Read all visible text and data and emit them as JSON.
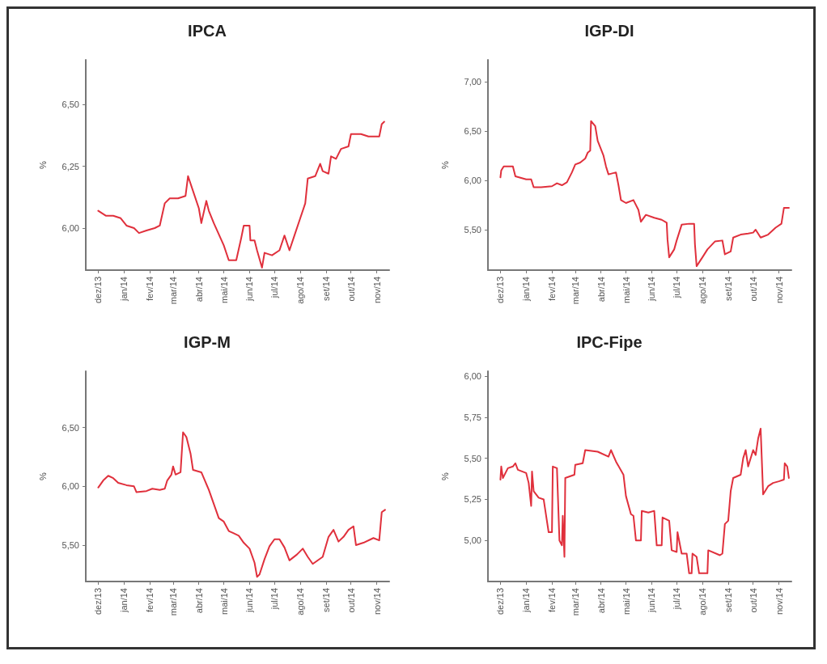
{
  "chart_data": [
    {
      "type": "line",
      "title": "IPCA",
      "ylabel": "%",
      "color": "#e0303c",
      "marker": "none",
      "grid": false,
      "x": [
        "2013-12-01",
        "2013-12-10",
        "2013-12-19",
        "2013-12-28",
        "2014-01-04",
        "2014-01-13",
        "2014-01-19",
        "2014-01-28",
        "2014-02-07",
        "2014-02-13",
        "2014-02-19",
        "2014-02-25",
        "2014-03-07",
        "2014-03-16",
        "2014-03-19",
        "2014-03-25",
        "2014-04-01",
        "2014-04-04",
        "2014-04-10",
        "2014-04-13",
        "2014-04-19",
        "2014-05-01",
        "2014-05-07",
        "2014-05-16",
        "2014-05-22",
        "2014-05-25",
        "2014-06-01",
        "2014-06-02",
        "2014-06-07",
        "2014-06-10",
        "2014-06-16",
        "2014-06-19",
        "2014-06-28",
        "2014-07-07",
        "2014-07-13",
        "2014-07-19",
        "2014-07-25",
        "2014-08-01",
        "2014-08-07",
        "2014-08-10",
        "2014-08-19",
        "2014-08-25",
        "2014-08-28",
        "2014-09-04",
        "2014-09-07",
        "2014-09-13",
        "2014-09-19",
        "2014-09-28",
        "2014-10-01",
        "2014-10-13",
        "2014-10-22",
        "2014-11-01",
        "2014-11-04",
        "2014-11-07",
        "2014-11-10"
      ],
      "values": [
        6.07,
        6.05,
        6.05,
        6.04,
        6.01,
        6.0,
        5.98,
        5.99,
        6.0,
        6.01,
        6.1,
        6.12,
        6.12,
        6.13,
        6.21,
        6.15,
        6.08,
        6.02,
        6.11,
        6.07,
        6.02,
        5.93,
        5.87,
        5.87,
        5.96,
        6.01,
        6.01,
        5.95,
        5.95,
        5.91,
        5.84,
        5.9,
        5.89,
        5.91,
        5.97,
        5.91,
        5.97,
        6.04,
        6.1,
        6.2,
        6.21,
        6.26,
        6.23,
        6.22,
        6.29,
        6.28,
        6.32,
        6.33,
        6.38,
        6.38,
        6.37,
        6.37,
        6.37,
        6.42,
        6.43
      ],
      "xlim": [
        "2013-11-16",
        "2014-11-16"
      ],
      "ylim": [
        5.83,
        6.68
      ],
      "yticks": [
        {
          "value": 6.0,
          "label": "6,00"
        },
        {
          "value": 6.25,
          "label": "6,25"
        },
        {
          "value": 6.5,
          "label": "6,50"
        }
      ],
      "xticks": [
        {
          "value": "2013-12-01",
          "label": "dez/13"
        },
        {
          "value": "2014-01-01",
          "label": "jan/14"
        },
        {
          "value": "2014-02-01",
          "label": "fev/14"
        },
        {
          "value": "2014-03-01",
          "label": "mar/14"
        },
        {
          "value": "2014-04-01",
          "label": "abr/14"
        },
        {
          "value": "2014-05-01",
          "label": "mai/14"
        },
        {
          "value": "2014-06-01",
          "label": "jun/14"
        },
        {
          "value": "2014-07-01",
          "label": "jul/14"
        },
        {
          "value": "2014-08-01",
          "label": "ago/14"
        },
        {
          "value": "2014-09-01",
          "label": "set/14"
        },
        {
          "value": "2014-10-01",
          "label": "out/14"
        },
        {
          "value": "2014-11-01",
          "label": "nov/14"
        }
      ]
    },
    {
      "type": "line",
      "title": "IGP-DI",
      "ylabel": "%",
      "color": "#e0303c",
      "marker": "none",
      "grid": false,
      "x": [
        "2013-12-01",
        "2013-12-02",
        "2013-12-05",
        "2013-12-16",
        "2013-12-19",
        "2014-01-01",
        "2014-01-07",
        "2014-01-10",
        "2014-01-19",
        "2014-02-01",
        "2014-02-07",
        "2014-02-13",
        "2014-02-19",
        "2014-02-25",
        "2014-03-01",
        "2014-03-07",
        "2014-03-13",
        "2014-03-16",
        "2014-03-19",
        "2014-03-20",
        "2014-03-25",
        "2014-03-28",
        "2014-04-04",
        "2014-04-07",
        "2014-04-10",
        "2014-04-19",
        "2014-04-22",
        "2014-04-25",
        "2014-05-01",
        "2014-05-10",
        "2014-05-16",
        "2014-05-19",
        "2014-05-25",
        "2014-06-04",
        "2014-06-13",
        "2014-06-19",
        "2014-06-20",
        "2014-06-22",
        "2014-06-28",
        "2014-07-01",
        "2014-07-07",
        "2014-07-16",
        "2014-07-22",
        "2014-07-23",
        "2014-07-25",
        "2014-08-01",
        "2014-08-07",
        "2014-08-16",
        "2014-08-25",
        "2014-08-28",
        "2014-09-04",
        "2014-09-07",
        "2014-09-16",
        "2014-09-25",
        "2014-10-01",
        "2014-10-04",
        "2014-10-10",
        "2014-10-19",
        "2014-10-28",
        "2014-11-04",
        "2014-11-07",
        "2014-11-13"
      ],
      "values": [
        6.03,
        6.1,
        6.14,
        6.14,
        6.04,
        6.01,
        6.01,
        5.93,
        5.93,
        5.94,
        5.97,
        5.95,
        5.98,
        6.08,
        6.16,
        6.18,
        6.22,
        6.28,
        6.3,
        6.6,
        6.55,
        6.4,
        6.25,
        6.14,
        6.06,
        6.08,
        5.95,
        5.8,
        5.77,
        5.8,
        5.7,
        5.58,
        5.65,
        5.62,
        5.6,
        5.57,
        5.4,
        5.22,
        5.3,
        5.39,
        5.55,
        5.56,
        5.56,
        5.35,
        5.13,
        5.22,
        5.3,
        5.38,
        5.39,
        5.25,
        5.28,
        5.42,
        5.45,
        5.46,
        5.47,
        5.5,
        5.42,
        5.45,
        5.52,
        5.56,
        5.72,
        5.72
      ],
      "xlim": [
        "2013-11-16",
        "2014-11-16"
      ],
      "ylim": [
        5.09,
        7.22
      ],
      "yticks": [
        {
          "value": 5.5,
          "label": "5,50"
        },
        {
          "value": 6.0,
          "label": "6,00"
        },
        {
          "value": 6.5,
          "label": "6,50"
        },
        {
          "value": 7.0,
          "label": "7,00"
        }
      ],
      "xticks": [
        {
          "value": "2013-12-01",
          "label": "dez/13"
        },
        {
          "value": "2014-01-01",
          "label": "jan/14"
        },
        {
          "value": "2014-02-01",
          "label": "fev/14"
        },
        {
          "value": "2014-03-01",
          "label": "mar/14"
        },
        {
          "value": "2014-04-01",
          "label": "abr/14"
        },
        {
          "value": "2014-05-01",
          "label": "mai/14"
        },
        {
          "value": "2014-06-01",
          "label": "jun/14"
        },
        {
          "value": "2014-07-01",
          "label": "jul/14"
        },
        {
          "value": "2014-08-01",
          "label": "ago/14"
        },
        {
          "value": "2014-09-01",
          "label": "set/14"
        },
        {
          "value": "2014-10-01",
          "label": "out/14"
        },
        {
          "value": "2014-11-01",
          "label": "nov/14"
        }
      ]
    },
    {
      "type": "line",
      "title": "IGP-M",
      "ylabel": "%",
      "color": "#e0303c",
      "marker": "none",
      "grid": false,
      "x": [
        "2013-12-01",
        "2013-12-07",
        "2013-12-13",
        "2013-12-19",
        "2013-12-25",
        "2014-01-04",
        "2014-01-13",
        "2014-01-16",
        "2014-01-28",
        "2014-02-04",
        "2014-02-13",
        "2014-02-19",
        "2014-02-22",
        "2014-02-27",
        "2014-03-01",
        "2014-03-04",
        "2014-03-10",
        "2014-03-13",
        "2014-03-17",
        "2014-03-22",
        "2014-03-25",
        "2014-04-04",
        "2014-04-07",
        "2014-04-13",
        "2014-04-19",
        "2014-04-25",
        "2014-05-01",
        "2014-05-07",
        "2014-05-13",
        "2014-05-19",
        "2014-05-25",
        "2014-06-01",
        "2014-06-07",
        "2014-06-10",
        "2014-06-13",
        "2014-06-19",
        "2014-06-25",
        "2014-07-01",
        "2014-07-07",
        "2014-07-13",
        "2014-07-19",
        "2014-07-28",
        "2014-08-04",
        "2014-08-10",
        "2014-08-16",
        "2014-08-28",
        "2014-09-04",
        "2014-09-10",
        "2014-09-16",
        "2014-09-22",
        "2014-09-28",
        "2014-10-04",
        "2014-10-07",
        "2014-10-16",
        "2014-10-28",
        "2014-11-04",
        "2014-11-07",
        "2014-11-11"
      ],
      "values": [
        5.99,
        6.05,
        6.09,
        6.07,
        6.03,
        6.01,
        6.0,
        5.95,
        5.96,
        5.98,
        5.97,
        5.98,
        6.05,
        6.1,
        6.17,
        6.1,
        6.12,
        6.46,
        6.42,
        6.28,
        6.14,
        6.12,
        6.07,
        5.97,
        5.85,
        5.73,
        5.7,
        5.62,
        5.6,
        5.58,
        5.52,
        5.47,
        5.35,
        5.23,
        5.25,
        5.38,
        5.49,
        5.55,
        5.55,
        5.48,
        5.37,
        5.42,
        5.47,
        5.4,
        5.34,
        5.4,
        5.57,
        5.63,
        5.53,
        5.57,
        5.63,
        5.66,
        5.5,
        5.52,
        5.56,
        5.54,
        5.78,
        5.8
      ],
      "xlim": [
        "2013-11-16",
        "2014-11-16"
      ],
      "ylim": [
        5.19,
        6.98
      ],
      "yticks": [
        {
          "value": 5.5,
          "label": "5,50"
        },
        {
          "value": 6.0,
          "label": "6,00"
        },
        {
          "value": 6.5,
          "label": "6,50"
        }
      ],
      "xticks": [
        {
          "value": "2013-12-01",
          "label": "dez/13"
        },
        {
          "value": "2014-01-01",
          "label": "jan/14"
        },
        {
          "value": "2014-02-01",
          "label": "fev/14"
        },
        {
          "value": "2014-03-01",
          "label": "mar/14"
        },
        {
          "value": "2014-04-01",
          "label": "abr/14"
        },
        {
          "value": "2014-05-01",
          "label": "mai/14"
        },
        {
          "value": "2014-06-01",
          "label": "jun/14"
        },
        {
          "value": "2014-07-01",
          "label": "jul/14"
        },
        {
          "value": "2014-08-01",
          "label": "ago/14"
        },
        {
          "value": "2014-09-01",
          "label": "set/14"
        },
        {
          "value": "2014-10-01",
          "label": "out/14"
        },
        {
          "value": "2014-11-01",
          "label": "nov/14"
        }
      ]
    },
    {
      "type": "line",
      "title": "IPC-Fipe",
      "ylabel": "%",
      "color": "#e0303c",
      "marker": "none",
      "grid": false,
      "x": [
        "2013-12-01",
        "2013-12-02",
        "2013-12-04",
        "2013-12-10",
        "2013-12-16",
        "2013-12-19",
        "2013-12-22",
        "2014-01-01",
        "2014-01-04",
        "2014-01-07",
        "2014-01-08",
        "2014-01-10",
        "2014-01-16",
        "2014-01-22",
        "2014-01-28",
        "2014-02-01",
        "2014-02-02",
        "2014-02-07",
        "2014-02-10",
        "2014-02-13",
        "2014-02-14",
        "2014-02-16",
        "2014-02-17",
        "2014-02-28",
        "2014-03-01",
        "2014-03-10",
        "2014-03-13",
        "2014-03-28",
        "2014-04-10",
        "2014-04-13",
        "2014-04-19",
        "2014-04-28",
        "2014-05-01",
        "2014-05-07",
        "2014-05-10",
        "2014-05-13",
        "2014-05-19",
        "2014-05-20",
        "2014-05-28",
        "2014-06-04",
        "2014-06-07",
        "2014-06-13",
        "2014-06-14",
        "2014-06-22",
        "2014-06-25",
        "2014-07-01",
        "2014-07-02",
        "2014-07-07",
        "2014-07-13",
        "2014-07-16",
        "2014-07-19",
        "2014-07-20",
        "2014-07-25",
        "2014-07-28",
        "2014-08-07",
        "2014-08-08",
        "2014-08-22",
        "2014-08-25",
        "2014-08-28",
        "2014-09-01",
        "2014-09-04",
        "2014-09-07",
        "2014-09-16",
        "2014-09-19",
        "2014-09-22",
        "2014-09-25",
        "2014-10-01",
        "2014-10-04",
        "2014-10-07",
        "2014-10-10",
        "2014-10-13",
        "2014-10-19",
        "2014-10-25",
        "2014-11-01",
        "2014-11-07",
        "2014-11-08",
        "2014-11-11",
        "2014-11-13"
      ],
      "values": [
        5.37,
        5.45,
        5.38,
        5.44,
        5.45,
        5.47,
        5.43,
        5.41,
        5.35,
        5.21,
        5.42,
        5.3,
        5.26,
        5.25,
        5.05,
        5.05,
        5.45,
        5.44,
        5.0,
        4.97,
        5.15,
        4.9,
        5.38,
        5.4,
        5.46,
        5.47,
        5.55,
        5.54,
        5.51,
        5.55,
        5.48,
        5.4,
        5.27,
        5.16,
        5.15,
        5.0,
        5.0,
        5.18,
        5.17,
        5.18,
        4.97,
        4.97,
        5.14,
        5.12,
        4.94,
        4.93,
        5.05,
        4.92,
        4.92,
        4.8,
        4.8,
        4.92,
        4.9,
        4.8,
        4.8,
        4.94,
        4.91,
        4.92,
        5.1,
        5.12,
        5.3,
        5.38,
        5.4,
        5.5,
        5.55,
        5.45,
        5.55,
        5.52,
        5.62,
        5.68,
        5.28,
        5.33,
        5.35,
        5.36,
        5.37,
        5.47,
        5.45,
        5.38
      ],
      "xlim": [
        "2013-11-16",
        "2014-11-16"
      ],
      "ylim": [
        4.75,
        6.03
      ],
      "yticks": [
        {
          "value": 5.0,
          "label": "5,00"
        },
        {
          "value": 5.25,
          "label": "5,25"
        },
        {
          "value": 5.5,
          "label": "5,50"
        },
        {
          "value": 5.75,
          "label": "5,75"
        },
        {
          "value": 6.0,
          "label": "6,00"
        }
      ],
      "xticks": [
        {
          "value": "2013-12-01",
          "label": "dez/13"
        },
        {
          "value": "2014-01-01",
          "label": "jan/14"
        },
        {
          "value": "2014-02-01",
          "label": "fev/14"
        },
        {
          "value": "2014-03-01",
          "label": "mar/14"
        },
        {
          "value": "2014-04-01",
          "label": "abr/14"
        },
        {
          "value": "2014-05-01",
          "label": "mai/14"
        },
        {
          "value": "2014-06-01",
          "label": "jun/14"
        },
        {
          "value": "2014-07-01",
          "label": "jul/14"
        },
        {
          "value": "2014-08-01",
          "label": "ago/14"
        },
        {
          "value": "2014-09-01",
          "label": "set/14"
        },
        {
          "value": "2014-10-01",
          "label": "out/14"
        },
        {
          "value": "2014-11-01",
          "label": "nov/14"
        }
      ]
    }
  ]
}
